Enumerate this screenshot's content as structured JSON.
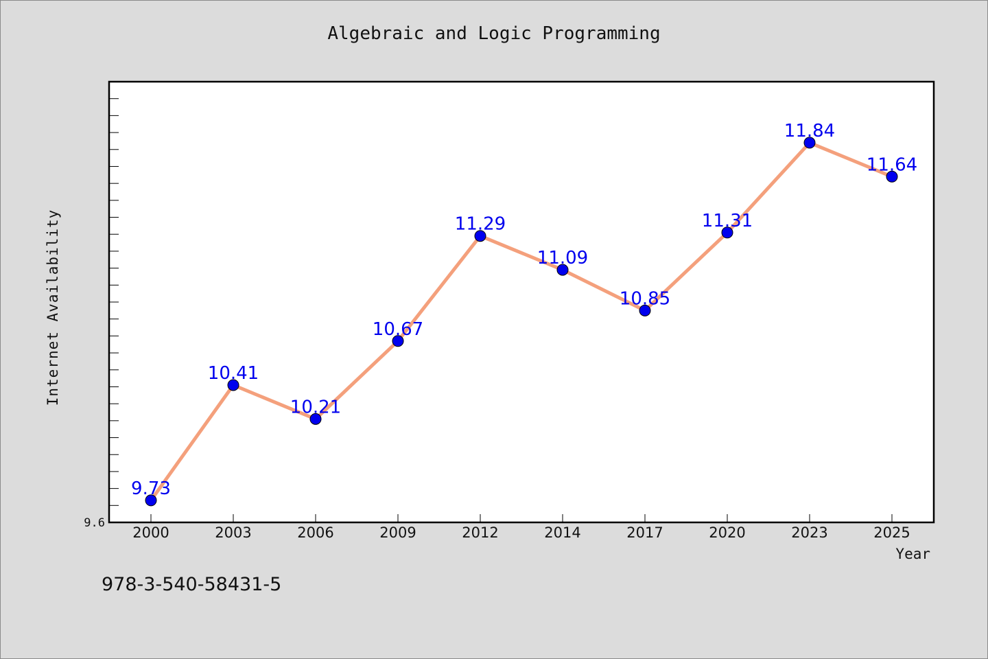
{
  "chart_data": {
    "type": "line",
    "title": "Algebraic and Logic Programming",
    "xlabel": "Year",
    "ylabel": "Internet Availability",
    "categories": [
      "2000",
      "2003",
      "2006",
      "2009",
      "2012",
      "2014",
      "2017",
      "2020",
      "2023",
      "2025"
    ],
    "series": [
      {
        "values": [
          9.73,
          10.41,
          10.21,
          10.67,
          11.29,
          11.09,
          10.85,
          11.31,
          11.84,
          11.64
        ]
      }
    ],
    "y_tick_labels": [
      "9.6"
    ],
    "ylim": [
      9.6,
      12.2
    ],
    "grid": false,
    "line_color": "#f4a07c",
    "marker_color": "#0000ee",
    "label_color": "#0000ee"
  },
  "footnote": "978-3-540-58431-5"
}
